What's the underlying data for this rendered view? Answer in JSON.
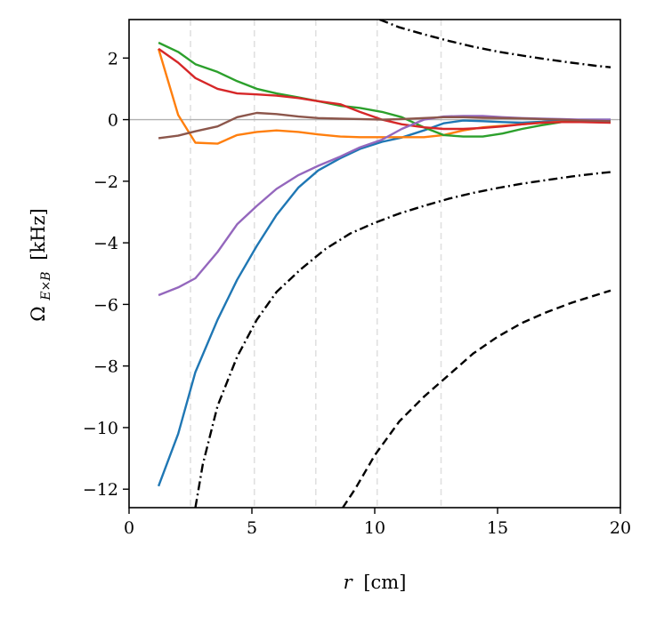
{
  "chart_data": {
    "type": "line",
    "title": "",
    "xlabel": "r [cm]",
    "ylabel": "Ω_{E×B} [kHz]",
    "xlabel_parts": {
      "var": "r",
      "unit": "[cm]"
    },
    "ylabel_parts": {
      "symbol": "Ω",
      "subscript": "E×B",
      "unit": "[kHz]"
    },
    "xlim": [
      0,
      20
    ],
    "ylim": [
      -12.6,
      3.25
    ],
    "xticks": [
      0,
      5,
      10,
      15,
      20
    ],
    "xtick_labels": [
      "0",
      "5",
      "10",
      "15",
      "20"
    ],
    "yticks": [
      2,
      0,
      -2,
      -4,
      -6,
      -8,
      -10,
      -12
    ],
    "ytick_labels": [
      "2",
      "0",
      "−2",
      "−4",
      "−6",
      "−8",
      "−10",
      "−12"
    ],
    "vlines": {
      "x": [
        2.5,
        5.1,
        7.6,
        10.1,
        12.7
      ],
      "style": "dashed",
      "color": "#e0e0e0"
    },
    "hline": {
      "y": 0,
      "color": "#b0b0b0"
    },
    "series": [
      {
        "name": "blue",
        "color": "#1f77b4",
        "style": "solid",
        "x": [
          1.2,
          2.0,
          2.7,
          3.6,
          4.4,
          5.2,
          6.0,
          6.9,
          7.7,
          8.6,
          9.4,
          10.3,
          11.1,
          12.0,
          12.8,
          13.6,
          14.4,
          15.2,
          16.0,
          16.8,
          17.6,
          18.4,
          19.6
        ],
        "y": [
          -11.9,
          -10.2,
          -8.2,
          -6.5,
          -5.2,
          -4.1,
          -3.1,
          -2.2,
          -1.65,
          -1.25,
          -0.95,
          -0.72,
          -0.58,
          -0.35,
          -0.12,
          -0.03,
          -0.05,
          -0.08,
          -0.1,
          -0.07,
          -0.02,
          0.0,
          0.0
        ]
      },
      {
        "name": "orange",
        "color": "#ff7f0e",
        "style": "solid",
        "x": [
          1.2,
          2.0,
          2.7,
          3.6,
          4.4,
          5.2,
          6.0,
          6.9,
          7.7,
          8.6,
          9.4,
          10.3,
          11.1,
          12.0,
          12.8,
          13.6,
          14.4,
          15.2,
          16.0,
          16.8,
          17.6,
          18.4,
          19.6
        ],
        "y": [
          2.3,
          0.15,
          -0.75,
          -0.78,
          -0.5,
          -0.4,
          -0.35,
          -0.4,
          -0.48,
          -0.55,
          -0.57,
          -0.57,
          -0.57,
          -0.57,
          -0.5,
          -0.35,
          -0.25,
          -0.2,
          -0.15,
          -0.1,
          -0.07,
          -0.05,
          -0.05
        ]
      },
      {
        "name": "green",
        "color": "#2ca02c",
        "style": "solid",
        "x": [
          1.2,
          2.0,
          2.7,
          3.6,
          4.4,
          5.2,
          6.0,
          6.9,
          7.7,
          8.6,
          9.4,
          10.3,
          11.1,
          12.0,
          12.8,
          13.6,
          14.4,
          15.2,
          16.0,
          16.8,
          17.6,
          18.4,
          19.6
        ],
        "y": [
          2.5,
          2.2,
          1.8,
          1.55,
          1.25,
          1.0,
          0.85,
          0.72,
          0.6,
          0.45,
          0.38,
          0.25,
          0.08,
          -0.25,
          -0.5,
          -0.55,
          -0.55,
          -0.45,
          -0.3,
          -0.18,
          -0.08,
          -0.05,
          -0.05
        ]
      },
      {
        "name": "red",
        "color": "#d62728",
        "style": "solid",
        "x": [
          1.2,
          2.0,
          2.7,
          3.6,
          4.4,
          5.2,
          6.0,
          6.9,
          7.7,
          8.6,
          9.4,
          10.3,
          11.1,
          12.0,
          12.8,
          13.6,
          14.4,
          15.2,
          16.0,
          16.8,
          17.6,
          18.4,
          19.6
        ],
        "y": [
          2.3,
          1.85,
          1.35,
          1.0,
          0.85,
          0.82,
          0.78,
          0.7,
          0.6,
          0.5,
          0.25,
          0.0,
          -0.15,
          -0.25,
          -0.3,
          -0.3,
          -0.27,
          -0.22,
          -0.15,
          -0.1,
          -0.08,
          -0.08,
          -0.1
        ]
      },
      {
        "name": "purple",
        "color": "#9467bd",
        "style": "solid",
        "x": [
          1.2,
          2.0,
          2.7,
          3.6,
          4.4,
          5.2,
          6.0,
          6.9,
          7.7,
          8.6,
          9.4,
          10.3,
          11.1,
          12.0,
          12.8,
          13.6,
          14.4,
          15.2,
          16.0,
          16.8,
          17.6,
          18.4,
          19.6
        ],
        "y": [
          -5.7,
          -5.45,
          -5.15,
          -4.3,
          -3.4,
          -2.8,
          -2.25,
          -1.8,
          -1.5,
          -1.2,
          -0.9,
          -0.65,
          -0.3,
          0.0,
          0.1,
          0.12,
          0.12,
          0.08,
          0.05,
          0.03,
          0.02,
          0.0,
          0.0
        ]
      },
      {
        "name": "brown",
        "color": "#8c564b",
        "style": "solid",
        "x": [
          1.2,
          2.0,
          2.7,
          3.6,
          4.4,
          5.2,
          6.0,
          6.9,
          7.7,
          8.6,
          9.4,
          10.3,
          11.1,
          12.0,
          12.8,
          13.6,
          14.4,
          15.2,
          16.0,
          16.8,
          17.6,
          18.4,
          19.6
        ],
        "y": [
          -0.6,
          -0.52,
          -0.38,
          -0.22,
          0.08,
          0.22,
          0.18,
          0.1,
          0.05,
          0.03,
          0.02,
          0.0,
          0.02,
          0.05,
          0.08,
          0.08,
          0.06,
          0.05,
          0.04,
          0.02,
          0.0,
          -0.02,
          -0.05
        ]
      },
      {
        "name": "bound-dashdot-upper",
        "color": "#000000",
        "style": "dashdot",
        "x": [
          10.2,
          11.0,
          12.0,
          13.0,
          14.0,
          15.0,
          16.0,
          17.0,
          18.0,
          19.0,
          19.6
        ],
        "y": [
          3.25,
          3.0,
          2.77,
          2.56,
          2.37,
          2.21,
          2.08,
          1.96,
          1.85,
          1.75,
          1.7
        ]
      },
      {
        "name": "bound-dashdot-lower",
        "color": "#000000",
        "style": "dashdot",
        "x": [
          2.7,
          3.0,
          3.6,
          4.4,
          5.2,
          6.0,
          7.0,
          8.0,
          9.0,
          10.0,
          11.0,
          12.0,
          13.0,
          14.0,
          15.0,
          16.0,
          17.0,
          18.0,
          19.0,
          19.6
        ],
        "y": [
          -12.6,
          -11.2,
          -9.3,
          -7.7,
          -6.5,
          -5.6,
          -4.85,
          -4.2,
          -3.7,
          -3.35,
          -3.05,
          -2.8,
          -2.57,
          -2.38,
          -2.22,
          -2.08,
          -1.96,
          -1.85,
          -1.75,
          -1.7
        ]
      },
      {
        "name": "bound-dashed",
        "color": "#000000",
        "style": "dashed",
        "x": [
          8.7,
          9.2,
          10.0,
          11.0,
          12.0,
          13.0,
          14.0,
          15.0,
          16.0,
          17.0,
          18.0,
          19.0,
          19.6
        ],
        "y": [
          -12.6,
          -12.0,
          -10.9,
          -9.8,
          -9.0,
          -8.3,
          -7.6,
          -7.05,
          -6.6,
          -6.25,
          -5.95,
          -5.7,
          -5.55
        ]
      }
    ]
  }
}
